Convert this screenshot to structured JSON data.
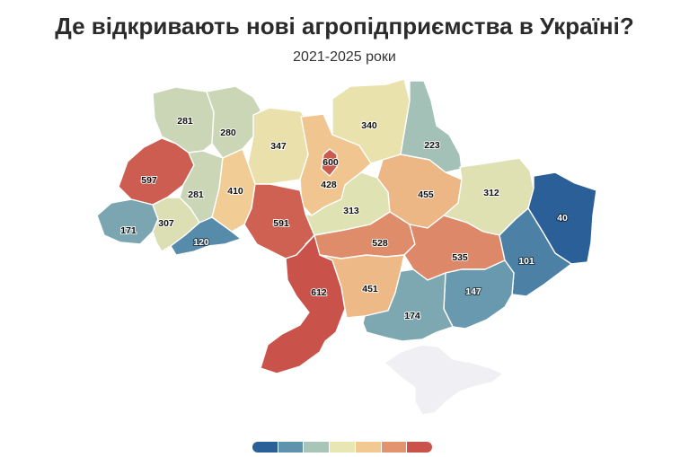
{
  "title": "Де відкривають нові агропідприємства в Україні?",
  "subtitle": "2021-2025 роки",
  "colors": {
    "scale": [
      "#2166ac",
      "#67a9cf",
      "#d1e5f0",
      "#f7f7f7",
      "#fddbc7",
      "#ef8a62",
      "#b2182b"
    ],
    "legend": [
      "#2a5f98",
      "#5f93ad",
      "#a9c5b8",
      "#e8e6b2",
      "#f2c991",
      "#e29470",
      "#c9534a"
    ],
    "no_data": "#f0f0f4"
  },
  "regions": [
    {
      "id": "volyn",
      "value": 281
    },
    {
      "id": "rivne",
      "value": 280
    },
    {
      "id": "zhytomyr",
      "value": 347
    },
    {
      "id": "kyiv-oblast",
      "value": 428
    },
    {
      "id": "kyiv-city",
      "value": 600
    },
    {
      "id": "chernihiv",
      "value": 340
    },
    {
      "id": "sumy",
      "value": 223
    },
    {
      "id": "lviv",
      "value": 597
    },
    {
      "id": "ternopil",
      "value": 281
    },
    {
      "id": "khmelnytskyi",
      "value": 410
    },
    {
      "id": "vinnytsia",
      "value": 591
    },
    {
      "id": "cherkasy",
      "value": 313
    },
    {
      "id": "poltava",
      "value": 455
    },
    {
      "id": "kharkiv",
      "value": 312
    },
    {
      "id": "luhansk",
      "value": 40
    },
    {
      "id": "zakarpattia",
      "value": 171
    },
    {
      "id": "ivano-frankivsk",
      "value": 307
    },
    {
      "id": "chernivtsi",
      "value": 120
    },
    {
      "id": "kirovohrad",
      "value": 528
    },
    {
      "id": "dnipropetrovsk",
      "value": 535
    },
    {
      "id": "donetsk",
      "value": 101
    },
    {
      "id": "odesa",
      "value": 612
    },
    {
      "id": "mykolaiv",
      "value": 451
    },
    {
      "id": "zaporizhzhia",
      "value": 147
    },
    {
      "id": "kherson",
      "value": 174
    }
  ]
}
